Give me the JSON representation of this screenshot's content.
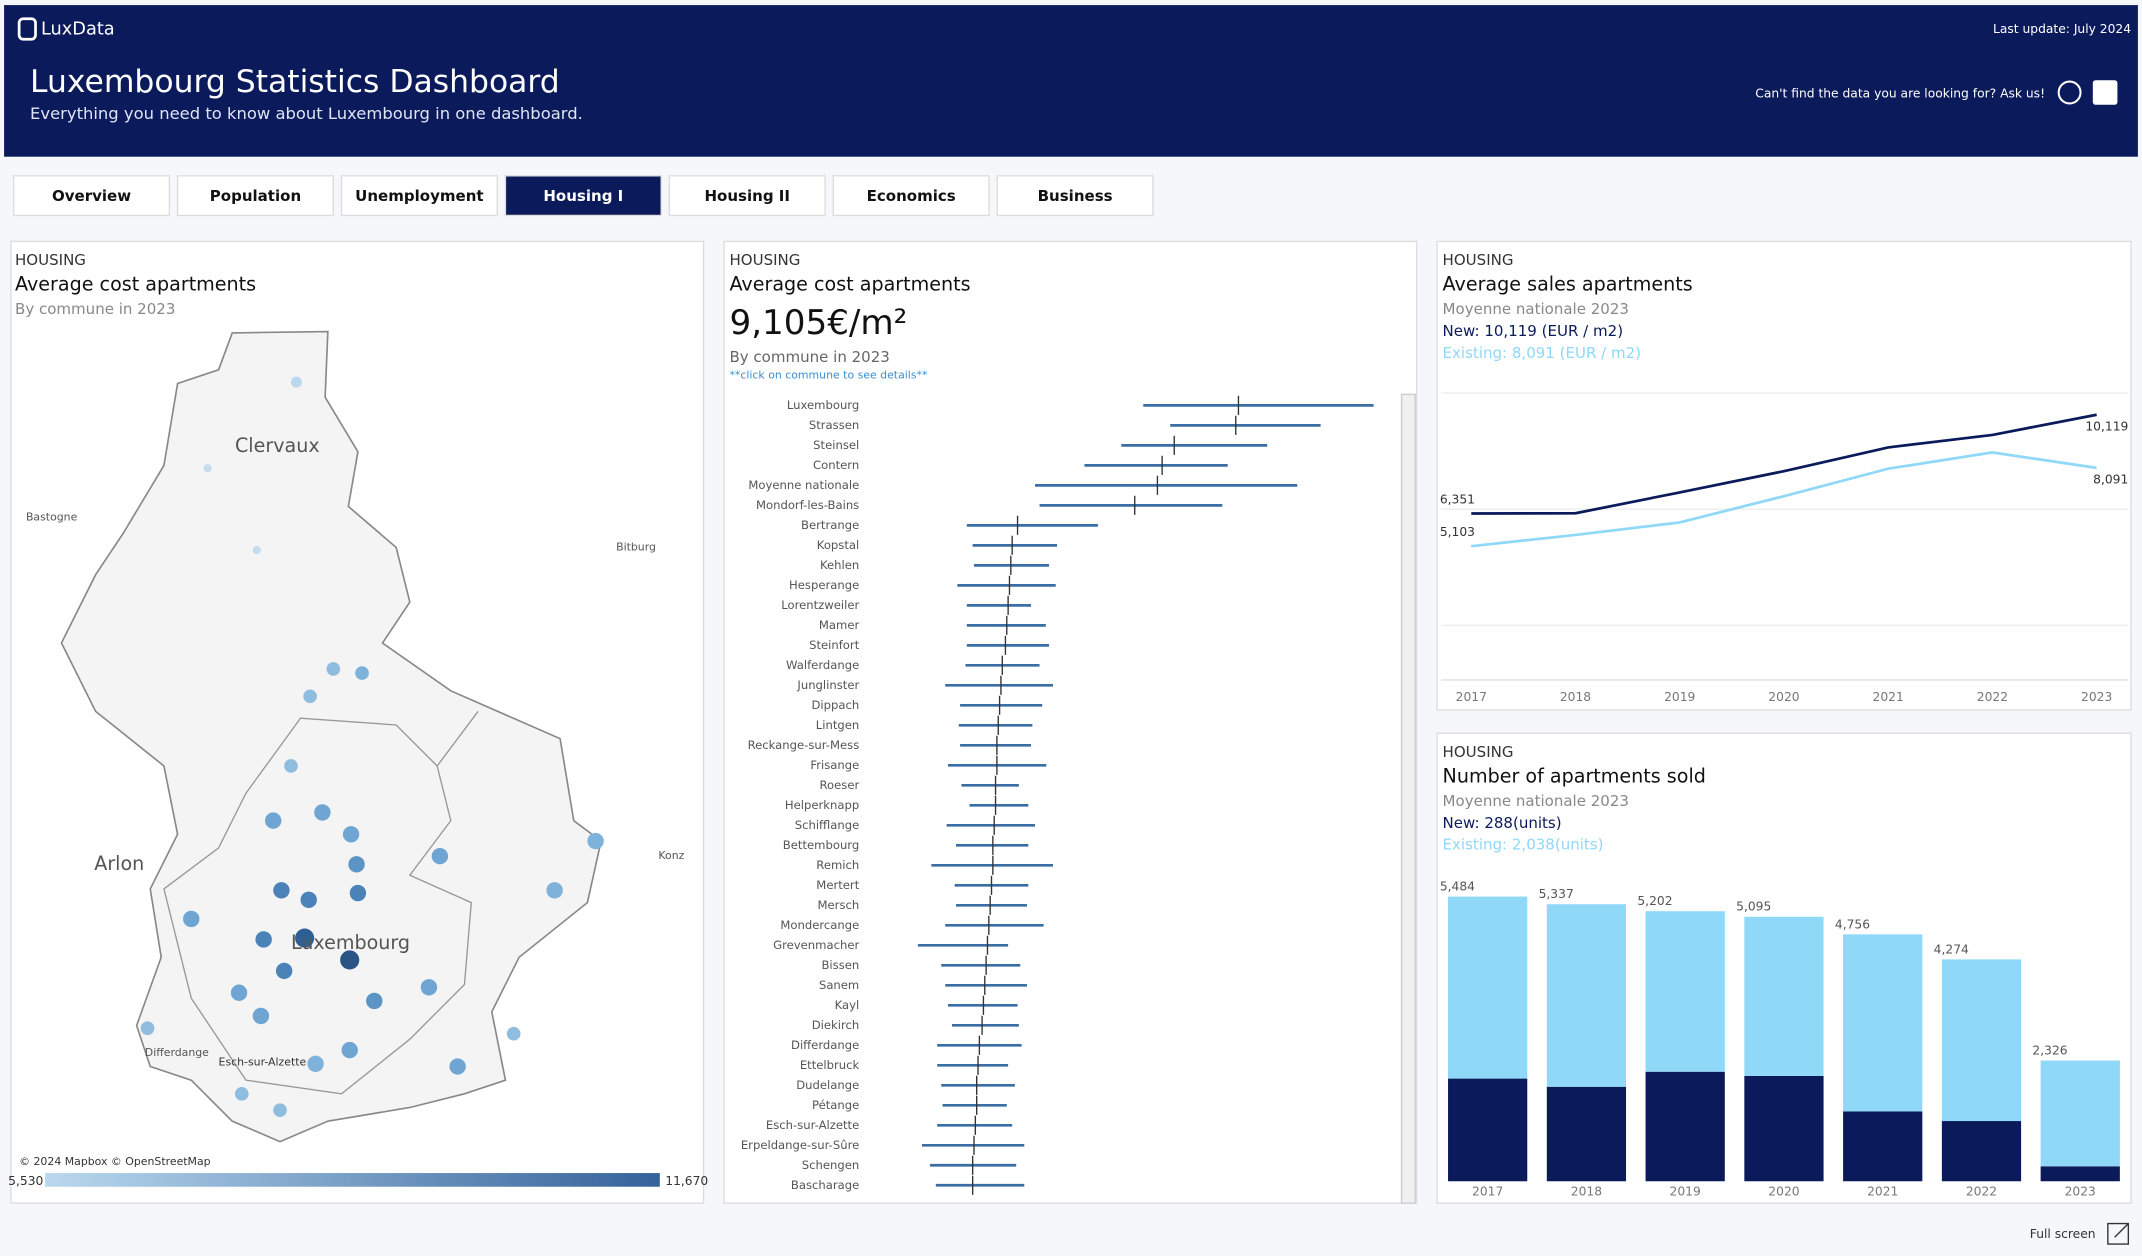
{
  "header": {
    "logo": "LuxData",
    "title": "Luxembourg Statistics Dashboard",
    "subtitle": "Everything you need to know about Luxembourg in one dashboard.",
    "last_update": "Last update: July 2024",
    "ask": "Can't find the data you are looking for? Ask us!",
    "full_screen": "Full screen"
  },
  "tabs": {
    "items": [
      "Overview",
      "Population",
      "Unemployment",
      "Housing I",
      "Housing II",
      "Economics",
      "Business"
    ],
    "active": 3
  },
  "map": {
    "kicker": "HOUSING",
    "title": "Average cost apartments",
    "subtitle": "By commune in 2023",
    "places": [
      "Clervaux",
      "Bastogne",
      "Bitburg",
      "Arlon",
      "Luxembourg",
      "Konz",
      "Differdange",
      "Esch-sur-Alzette"
    ],
    "credit": "© 2024 Mapbox © OpenStreetMap",
    "legend": [
      {
        "value": 5530,
        "label": "5,530"
      },
      {
        "value": 11670,
        "label": "11,670"
      }
    ],
    "colors": [
      "#b9d8ee",
      "#34629a"
    ]
  },
  "chart_data": [
    {
      "type": "errorbar",
      "kicker": "HOUSING",
      "title": "Average cost apartments",
      "kpi": "9,105€/m²",
      "subtitle": "By commune in 2023",
      "note": "**click on commune to see details**",
      "color": "#3a6ea5",
      "xlim": [
        0,
        14300
      ],
      "categories": [
        "Luxembourg",
        "Strassen",
        "Steinsel",
        "Contern",
        "Moyenne nationale",
        "Mondorf-les-Bains",
        "Bertrange",
        "Kopstal",
        "Kehlen",
        "Hesperange",
        "Lorentzweiler",
        "Mamer",
        "Steinfort",
        "Walferdange",
        "Junglinster",
        "Dippach",
        "Lintgen",
        "Reckange-sur-Mess",
        "Frisange",
        "Roeser",
        "Helperknapp",
        "Schifflange",
        "Bettembourg",
        "Remich",
        "Mertert",
        "Mersch",
        "Mondercange",
        "Grevenmacher",
        "Bissen",
        "Sanem",
        "Kayl",
        "Diekirch",
        "Differdange",
        "Ettelbruck",
        "Dudelange",
        "Pétange",
        "Esch-sur-Alzette",
        "Erpeldange-sur-Sûre",
        "Schengen",
        "Bascharage"
      ],
      "values": [
        10910,
        10850,
        9480,
        9210,
        9105,
        8600,
        5990,
        5870,
        5840,
        5810,
        5780,
        5750,
        5720,
        5650,
        5620,
        5590,
        5560,
        5530,
        5530,
        5500,
        5500,
        5470,
        5440,
        5440,
        5410,
        5380,
        5350,
        5320,
        5290,
        5260,
        5230,
        5200,
        5140,
        5110,
        5080,
        5080,
        5050,
        5020,
        4990,
        4990
      ],
      "lows": [
        8790,
        9390,
        8300,
        7480,
        6380,
        6480,
        4860,
        4990,
        5020,
        4650,
        4860,
        4860,
        4860,
        4830,
        4380,
        4710,
        4680,
        4710,
        4440,
        4740,
        4920,
        4410,
        4620,
        4070,
        4590,
        4620,
        4380,
        3770,
        4290,
        4380,
        4440,
        4530,
        4200,
        4200,
        4290,
        4320,
        4200,
        3860,
        4040,
        4170
      ],
      "highs": [
        13920,
        12740,
        11550,
        10670,
        12220,
        10550,
        7780,
        6870,
        6690,
        6840,
        6290,
        6620,
        6690,
        6480,
        6780,
        6540,
        6320,
        6290,
        6630,
        6020,
        6230,
        6380,
        6230,
        6780,
        6230,
        6200,
        6570,
        5780,
        6050,
        6200,
        5990,
        6020,
        6080,
        5780,
        5930,
        5750,
        5870,
        6140,
        5960,
        6140
      ]
    },
    {
      "type": "line",
      "kicker": "HOUSING",
      "title": "Average sales apartments",
      "subtitle": "Moyenne nationale 2023",
      "new_label": "New: 10,119 (EUR / m2)",
      "existing_label": "Existing: 8,091 (EUR / m2)",
      "categories": [
        "2017",
        "2018",
        "2019",
        "2020",
        "2021",
        "2022",
        "2023"
      ],
      "ylim": [
        0,
        11000
      ],
      "series": [
        {
          "name": "New",
          "color": "#0b1a5a",
          "values": [
            6351,
            6360,
            7155,
            7966,
            8872,
            9349,
            10119
          ],
          "value_labels": [
            "6,351",
            null,
            null,
            null,
            null,
            null,
            "10,119"
          ]
        },
        {
          "name": "Existing",
          "color": "#8fd8f8",
          "values": [
            5103,
            5533,
            6010,
            7012,
            8060,
            8681,
            8091
          ],
          "value_labels": [
            "5,103",
            null,
            null,
            null,
            null,
            null,
            "8,091"
          ]
        }
      ]
    },
    {
      "type": "stacked-bar",
      "kicker": "HOUSING",
      "title": "Number of apartments sold",
      "subtitle": "Moyenne nationale 2023",
      "new_label": "New: 288(units)",
      "existing_label": "Existing: 2,038(units)",
      "categories": [
        "2017",
        "2018",
        "2019",
        "2020",
        "2021",
        "2022",
        "2023"
      ],
      "ylim": [
        0,
        6000
      ],
      "series": [
        {
          "name": "New",
          "color": "#0b1a5a",
          "values": [
            1978,
            1820,
            2110,
            2030,
            1345,
            1160,
            288
          ]
        },
        {
          "name": "Existing",
          "color": "#8fd8f8",
          "values": [
            3506,
            3517,
            3092,
            3065,
            3411,
            3114,
            2038
          ]
        }
      ],
      "totals": [
        5484,
        5337,
        5202,
        5095,
        4756,
        4274,
        2326
      ],
      "total_labels": [
        "5,484",
        "5,337",
        "5,202",
        "5,095",
        "4,756",
        "4,274",
        "2,326"
      ]
    }
  ]
}
